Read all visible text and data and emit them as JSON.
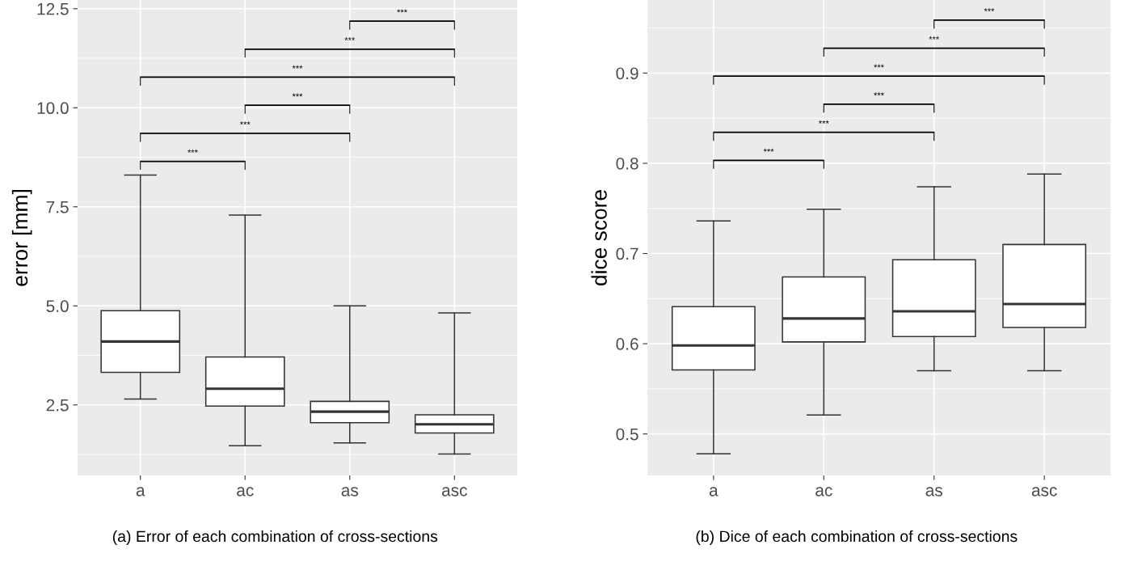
{
  "chart_data": [
    {
      "type": "box",
      "ylabel": "error [mm]",
      "categories": [
        "a",
        "ac",
        "as",
        "asc"
      ],
      "boxes": [
        {
          "low": 2.65,
          "q1": 3.32,
          "median": 4.1,
          "q3": 4.88,
          "high": 8.3
        },
        {
          "low": 1.47,
          "q1": 2.47,
          "median": 2.91,
          "q3": 3.71,
          "high": 7.29
        },
        {
          "low": 1.54,
          "q1": 2.05,
          "median": 2.33,
          "q3": 2.59,
          "high": 5.0
        },
        {
          "low": 1.26,
          "q1": 1.79,
          "median": 2.01,
          "q3": 2.25,
          "high": 4.82
        }
      ],
      "ylim": [
        0.72,
        12.72
      ],
      "yticks": [
        {
          "value": 2.5,
          "label": "2.5"
        },
        {
          "value": 5.0,
          "label": "5.0"
        },
        {
          "value": 7.5,
          "label": "7.5"
        },
        {
          "value": 10.0,
          "label": "10.0"
        },
        {
          "value": 12.5,
          "label": "12.5"
        }
      ],
      "grid": true,
      "annotations": [
        "***",
        "***",
        "***",
        "***",
        "***",
        "***",
        "(a) Error of each combination of cross-sections"
      ]
    },
    {
      "type": "box",
      "ylabel": "dice score",
      "categories": [
        "a",
        "ac",
        "as",
        "asc"
      ],
      "boxes": [
        {
          "low": 0.478,
          "q1": 0.571,
          "median": 0.598,
          "q3": 0.641,
          "high": 0.736
        },
        {
          "low": 0.521,
          "q1": 0.602,
          "median": 0.628,
          "q3": 0.674,
          "high": 0.749
        },
        {
          "low": 0.57,
          "q1": 0.608,
          "median": 0.636,
          "q3": 0.693,
          "high": 0.774
        },
        {
          "low": 0.57,
          "q1": 0.618,
          "median": 0.644,
          "q3": 0.71,
          "high": 0.788
        }
      ],
      "ylim": [
        0.454,
        0.981
      ],
      "yticks": [
        0.5,
        0.6,
        0.7,
        0.8,
        0.9
      ],
      "grid": true,
      "annotations": [
        "***",
        "***",
        "***",
        "***",
        "***",
        "***",
        "(b) Dice of each combination of cross-sections"
      ]
    }
  ]
}
